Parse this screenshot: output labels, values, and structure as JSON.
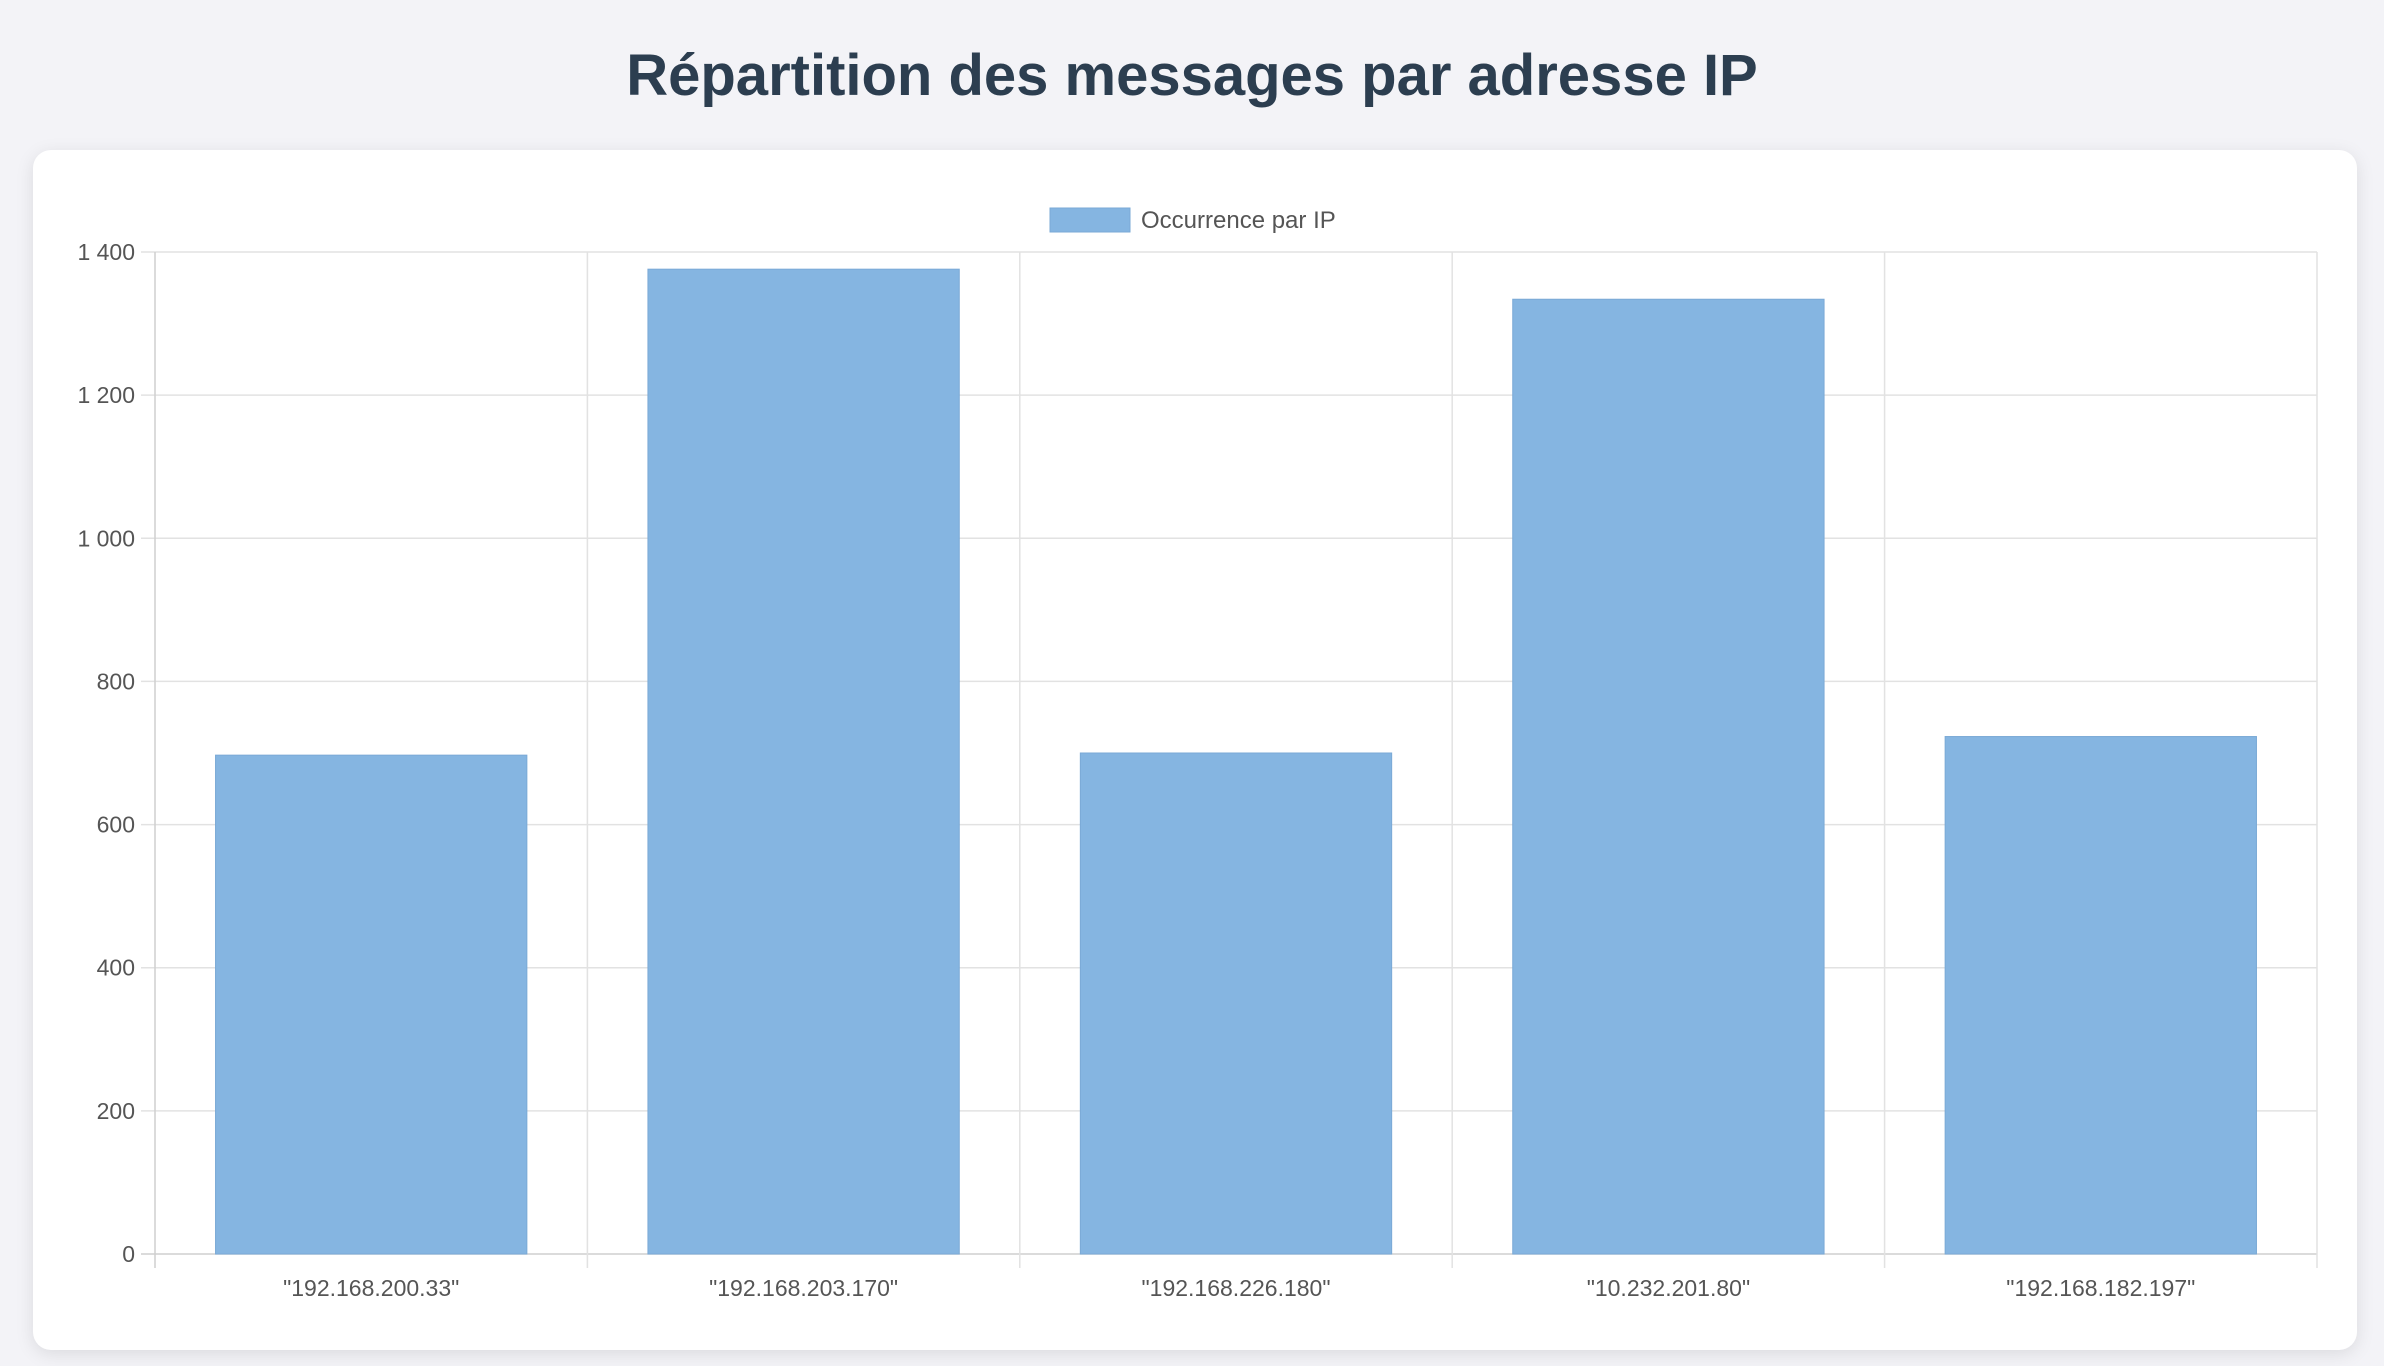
{
  "page": {
    "title": "Répartition des messages par adresse IP"
  },
  "colors": {
    "bar_fill": "#85b5e1",
    "bar_stroke": "#7aa9d6",
    "grid": "#e2e2e2",
    "axis": "#cfcfcf",
    "title": "#2c3e50",
    "background": "#f3f3f7"
  },
  "chart_data": {
    "type": "bar",
    "title": "",
    "xlabel": "",
    "ylabel": "",
    "categories": [
      "\"192.168.200.33\"",
      "\"192.168.203.170\"",
      "\"192.168.226.180\"",
      "\"10.232.201.80\"",
      "\"192.168.182.197\""
    ],
    "series": [
      {
        "name": "Occurrence par IP",
        "values": [
          697,
          1376,
          700,
          1334,
          723
        ]
      }
    ],
    "ylim": [
      0,
      1400
    ],
    "yticks": [
      0,
      200,
      400,
      600,
      800,
      1000,
      1200,
      1400
    ],
    "ytick_labels": [
      "0",
      "200",
      "400",
      "600",
      "800",
      "1 000",
      "1 200",
      "1 400"
    ],
    "grid": true,
    "legend_position": "top-center"
  }
}
